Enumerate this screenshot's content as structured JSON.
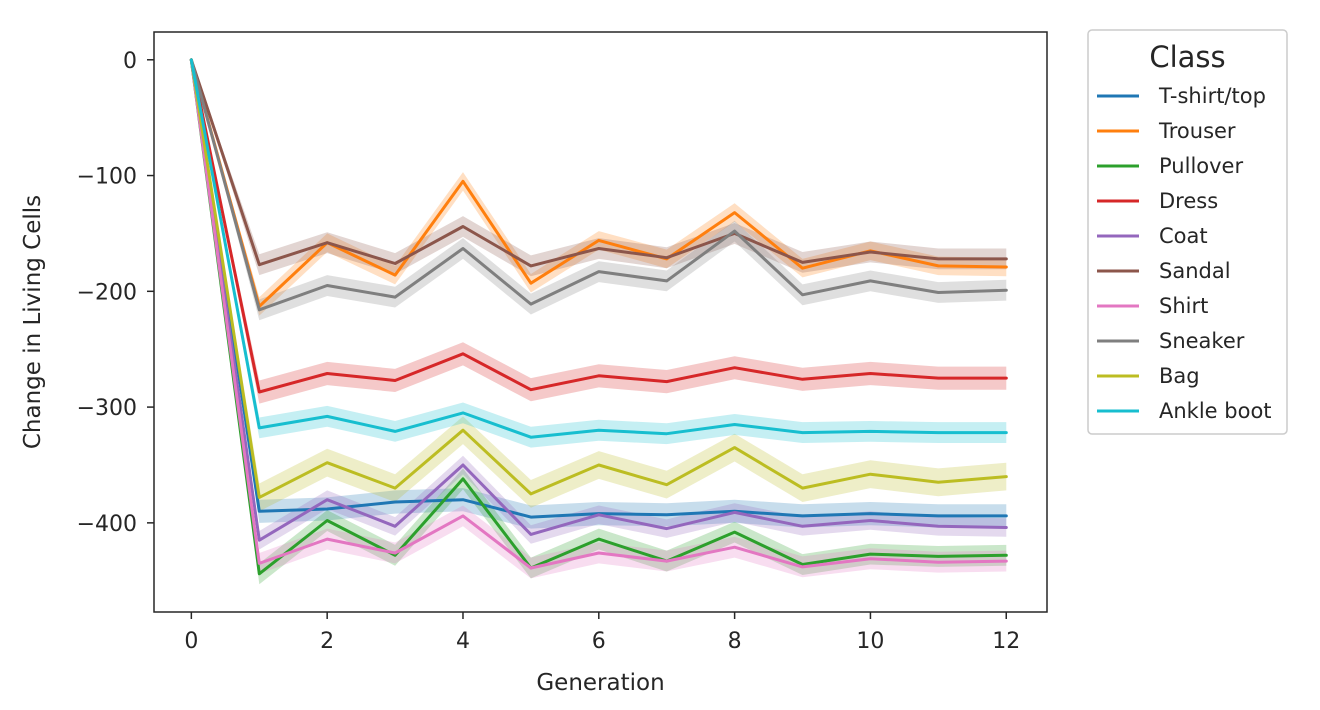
{
  "chart_data": {
    "type": "line",
    "xlabel": "Generation",
    "ylabel": "Change in Living Cells",
    "xlim": [
      -0.55,
      12.6
    ],
    "ylim": [
      -477,
      24
    ],
    "xticks": [
      0,
      2,
      4,
      6,
      8,
      10,
      12
    ],
    "yticks": [
      0,
      -100,
      -200,
      -300,
      -400
    ],
    "grid": false,
    "legend": {
      "title": "Class",
      "position": "outside-right-top"
    },
    "x": [
      0,
      1,
      2,
      3,
      4,
      5,
      6,
      7,
      8,
      9,
      10,
      11,
      12
    ],
    "series": [
      {
        "name": "T-shirt/top",
        "color": "#1f77b4",
        "band": 10,
        "values": [
          0,
          -390,
          -388,
          -382,
          -380,
          -395,
          -392,
          -393,
          -390,
          -394,
          -392,
          -394,
          -394
        ]
      },
      {
        "name": "Trouser",
        "color": "#ff7f0e",
        "band": 8,
        "values": [
          0,
          -213,
          -158,
          -186,
          -105,
          -193,
          -156,
          -172,
          -132,
          -180,
          -165,
          -178,
          -179
        ]
      },
      {
        "name": "Pullover",
        "color": "#2ca02c",
        "band": 9,
        "values": [
          0,
          -444,
          -398,
          -428,
          -362,
          -439,
          -414,
          -433,
          -408,
          -436,
          -427,
          -429,
          -428
        ]
      },
      {
        "name": "Dress",
        "color": "#d62728",
        "band": 10,
        "values": [
          0,
          -287,
          -271,
          -277,
          -254,
          -285,
          -273,
          -278,
          -266,
          -276,
          -271,
          -275,
          -275
        ]
      },
      {
        "name": "Coat",
        "color": "#9467bd",
        "band": 8,
        "values": [
          0,
          -415,
          -380,
          -403,
          -350,
          -410,
          -393,
          -405,
          -391,
          -403,
          -398,
          -403,
          -404
        ]
      },
      {
        "name": "Sandal",
        "color": "#8c564b",
        "band": 9,
        "values": [
          0,
          -177,
          -158,
          -176,
          -144,
          -178,
          -163,
          -171,
          -150,
          -175,
          -166,
          -172,
          -172
        ]
      },
      {
        "name": "Shirt",
        "color": "#e377c2",
        "band": 9,
        "values": [
          0,
          -435,
          -414,
          -426,
          -394,
          -439,
          -426,
          -433,
          -421,
          -438,
          -431,
          -434,
          -433
        ]
      },
      {
        "name": "Sneaker",
        "color": "#7f7f7f",
        "band": 9,
        "values": [
          0,
          -216,
          -195,
          -205,
          -163,
          -211,
          -183,
          -191,
          -148,
          -203,
          -191,
          -201,
          -199
        ]
      },
      {
        "name": "Bag",
        "color": "#bcbd22",
        "band": 12,
        "values": [
          0,
          -378,
          -348,
          -370,
          -320,
          -375,
          -350,
          -367,
          -335,
          -370,
          -358,
          -365,
          -360
        ]
      },
      {
        "name": "Ankle boot",
        "color": "#17becf",
        "band": 9,
        "values": [
          0,
          -318,
          -308,
          -321,
          -305,
          -326,
          -320,
          -323,
          -315,
          -322,
          -321,
          -322,
          -322
        ]
      }
    ]
  }
}
